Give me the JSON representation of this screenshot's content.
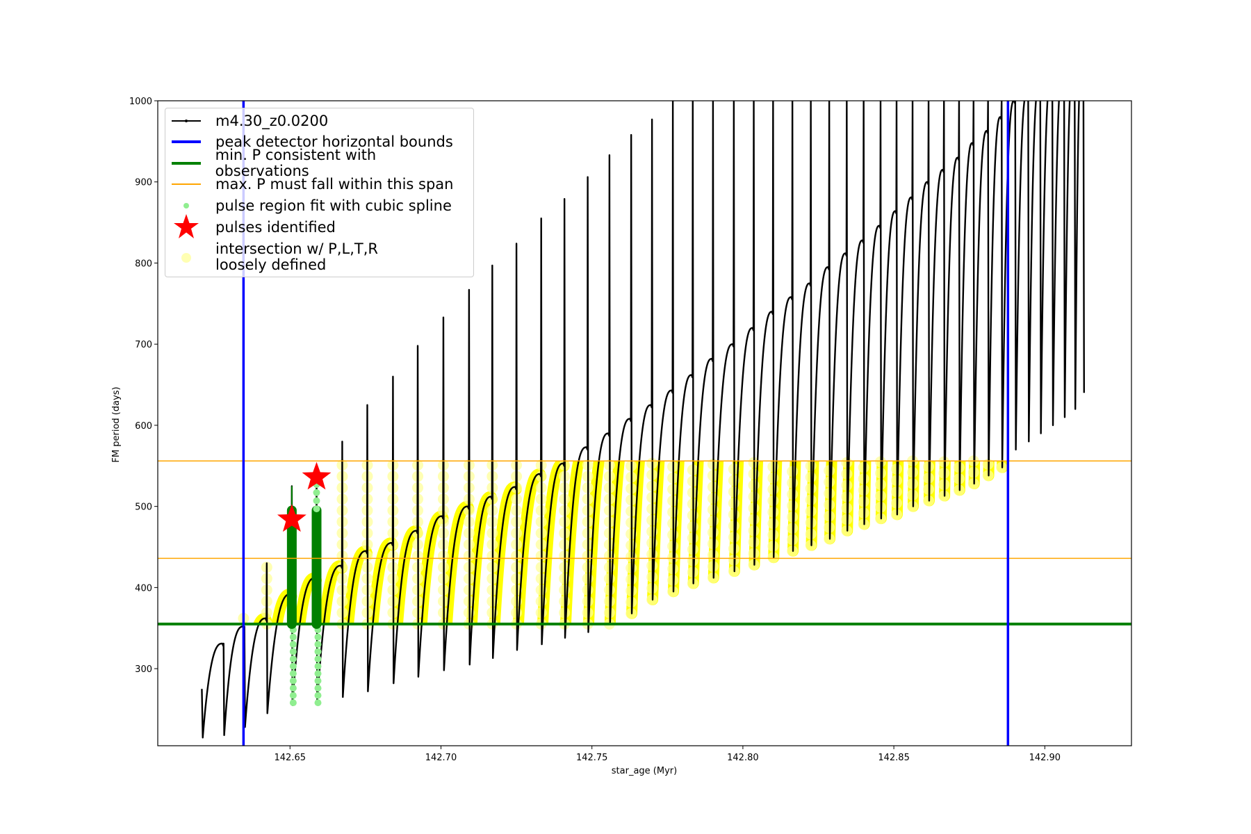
{
  "chart_data": {
    "type": "line",
    "xlabel": "star_age (Myr)",
    "ylabel": "FM period (days)",
    "xlim": [
      142.6062,
      142.9287
    ],
    "ylim": [
      205,
      1000
    ],
    "xticks": [
      142.65,
      142.7,
      142.75,
      142.8,
      142.85,
      142.9
    ],
    "xtick_labels": [
      "142.65",
      "142.70",
      "142.75",
      "142.80",
      "142.85",
      "142.90"
    ],
    "yticks": [
      300,
      400,
      500,
      600,
      700,
      800,
      900,
      1000
    ],
    "ytick_labels": [
      "300",
      "400",
      "500",
      "600",
      "700",
      "800",
      "900",
      "1000"
    ],
    "legend_position": "upper-left",
    "legend": [
      {
        "label": "m4.30_z0.0200",
        "color": "#000000",
        "kind": "line-marker"
      },
      {
        "label": "peak detector horizontal bounds",
        "color": "#0000ff",
        "kind": "thick-line"
      },
      {
        "label": "min. P consistent with observations",
        "color": "#008000",
        "kind": "thick-line"
      },
      {
        "label": "max. P must fall within this span",
        "color": "#ffa500",
        "kind": "thin-line"
      },
      {
        "label": "pulse region fit with cubic spline",
        "color": "#90ee90",
        "kind": "dot"
      },
      {
        "label": "pulses identified",
        "color": "#ff0000",
        "kind": "star"
      },
      {
        "label": "intersection w/ P,L,T,R",
        "label2": "loosely defined",
        "color": "#ffff99",
        "kind": "circle"
      }
    ],
    "track": {
      "name": "m4.30_z0.0200",
      "start_age": 142.6208,
      "start_period": 275,
      "start_dip": 215,
      "pulse_ages": [
        142.628,
        142.6349,
        142.6423,
        142.6506,
        142.6588,
        142.6673,
        142.6756,
        142.6841,
        142.6923,
        142.7008,
        142.7093,
        142.717,
        142.725,
        142.7332,
        142.7409,
        142.7486,
        142.7558,
        142.763,
        142.7699,
        142.7768,
        142.7834,
        142.7901,
        142.797,
        142.8036,
        142.81,
        142.8164,
        142.8225,
        142.8286,
        142.8344,
        142.84,
        142.8456,
        142.8509,
        142.8562,
        142.8615,
        142.8666,
        142.8716,
        142.8764,
        142.8812,
        142.8857,
        142.8902,
        142.8945,
        142.8985,
        142.9025,
        142.9064,
        142.9099,
        142.9128
      ],
      "arc_peak": [
        331,
        352,
        362,
        392,
        412,
        427,
        445,
        455,
        470,
        488,
        500,
        512,
        524,
        540,
        553,
        573,
        590,
        608,
        625,
        643,
        662,
        682,
        700,
        720,
        740,
        758,
        775,
        795,
        812,
        828,
        846,
        864,
        881,
        900,
        915,
        930,
        948,
        963,
        980,
        1000,
        1010,
        1020,
        1030,
        1040,
        1050,
        1060
      ],
      "spike_top": [
        331,
        352,
        430,
        525,
        540,
        580,
        625,
        660,
        698,
        733,
        767,
        797,
        824,
        855,
        879,
        906,
        933,
        958,
        977,
        1000,
        1000,
        1000,
        1000,
        1000,
        1000,
        1000,
        1000,
        1000,
        1000,
        1000,
        1000,
        1000,
        1000,
        1000,
        1000,
        1000,
        1000,
        1000,
        1000,
        1000,
        1000,
        1000,
        1000,
        1000,
        1000,
        1000
      ],
      "dip_min": [
        218,
        228,
        245,
        255,
        258,
        265,
        272,
        282,
        290,
        298,
        305,
        313,
        323,
        330,
        338,
        345,
        355,
        368,
        385,
        395,
        405,
        412,
        420,
        428,
        437,
        445,
        452,
        460,
        470,
        478,
        485,
        490,
        500,
        507,
        513,
        520,
        528,
        538,
        548,
        570,
        580,
        590,
        600,
        610,
        620,
        640
      ]
    },
    "peak_detector_bounds": [
      142.6346,
      142.8878
    ],
    "min_period": 355,
    "max_period_span": [
      436,
      556
    ],
    "identified_pulses": [
      {
        "age": 142.6506,
        "period": 484,
        "fit_top": 495,
        "fit_bottom": 258
      },
      {
        "age": 142.6588,
        "period": 536,
        "fit_top": 530,
        "fit_bottom": 258
      }
    ],
    "colors": {
      "track": "#000000",
      "bounds": "#0000ff",
      "min": "#008000",
      "max": "#ffa500",
      "spline": "#90ee90",
      "spline_dark": "#008000",
      "star": "#ff0000",
      "intersection": "#ffff00",
      "intersection_marker": "#ffff99"
    }
  }
}
